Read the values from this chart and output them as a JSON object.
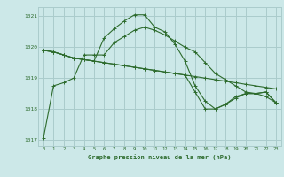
{
  "title": "Graphe pression niveau de la mer (hPa)",
  "xlim": [
    -0.5,
    23.5
  ],
  "ylim": [
    1016.8,
    1021.3
  ],
  "yticks": [
    1017,
    1018,
    1019,
    1020,
    1021
  ],
  "xticks": [
    0,
    1,
    2,
    3,
    4,
    5,
    6,
    7,
    8,
    9,
    10,
    11,
    12,
    13,
    14,
    15,
    16,
    17,
    18,
    19,
    20,
    21,
    22,
    23
  ],
  "bg_color": "#cce8e8",
  "grid_color": "#aacccc",
  "line_color": "#2d6b2d",
  "series": [
    [
      1017.05,
      1018.75,
      1018.85,
      1019.0,
      1019.75,
      1019.75,
      1019.75,
      1020.15,
      1020.35,
      1020.55,
      1020.65,
      1020.55,
      1020.4,
      1020.2,
      1020.0,
      1019.85,
      1019.5,
      1019.15,
      1018.95,
      1018.75,
      1018.55,
      1018.5,
      1018.4,
      1018.2
    ],
    [
      1019.9,
      1019.85,
      1019.75,
      1019.65,
      1019.6,
      1019.55,
      1019.5,
      1019.45,
      1019.4,
      1019.35,
      1019.3,
      1019.25,
      1019.2,
      1019.15,
      1019.1,
      1019.05,
      1019.0,
      1018.95,
      1018.9,
      1018.85,
      1018.8,
      1018.75,
      1018.7,
      1018.65
    ],
    [
      1019.9,
      1019.85,
      1019.75,
      1019.65,
      1019.6,
      1019.55,
      1019.5,
      1019.45,
      1019.4,
      1019.35,
      1019.3,
      1019.25,
      1019.2,
      1019.15,
      1019.1,
      1018.55,
      1018.0,
      1018.0,
      1018.15,
      1018.4,
      1018.5,
      1018.5,
      1018.55,
      1018.2
    ],
    [
      1019.9,
      1019.85,
      1019.75,
      1019.65,
      1019.6,
      1019.55,
      1020.3,
      1020.6,
      1020.85,
      1021.05,
      1021.05,
      1020.65,
      1020.5,
      1020.1,
      1019.55,
      1018.75,
      1018.25,
      1018.0,
      1018.15,
      1018.35,
      1018.5,
      1018.5,
      1018.55,
      1018.2
    ]
  ]
}
